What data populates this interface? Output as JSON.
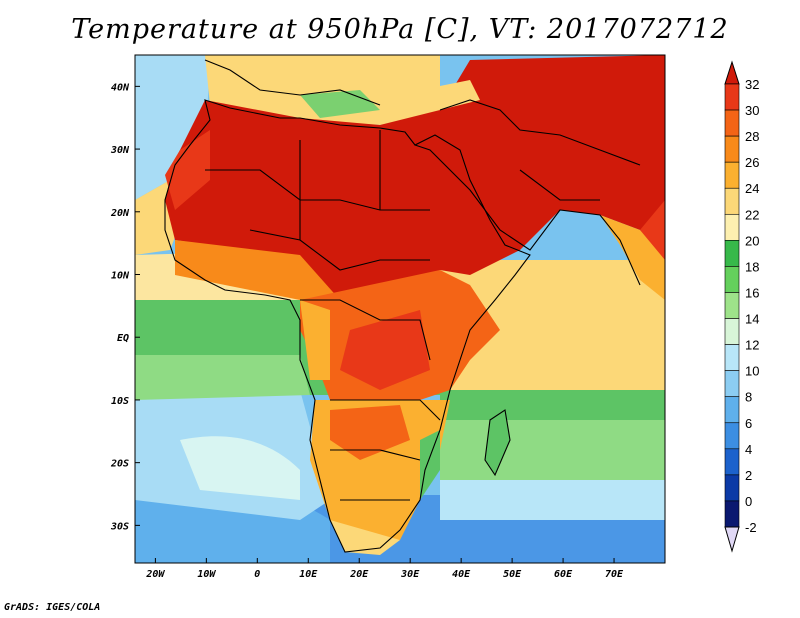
{
  "title": "Temperature at 950hPa [C], VT: 2017072712",
  "credit": "GrADS: IGES/COLA",
  "map": {
    "projection": "latlon",
    "lon_range": [
      -24,
      80
    ],
    "lat_range": [
      -36,
      45
    ],
    "lat_ticks": [
      "40N",
      "30N",
      "20N",
      "10N",
      "EQ",
      "10S",
      "20S",
      "30S"
    ],
    "lon_ticks": [
      "20W",
      "10W",
      "0",
      "10E",
      "20E",
      "30E",
      "40E",
      "50E",
      "60E",
      "70E"
    ],
    "colorbar": {
      "labels": [
        "32",
        "30",
        "28",
        "26",
        "24",
        "22",
        "20",
        "18",
        "16",
        "14",
        "12",
        "10",
        "8",
        "6",
        "4",
        "2",
        "0",
        "-2"
      ],
      "colors": [
        "#d01a0a",
        "#e83818",
        "#f46416",
        "#f88a1a",
        "#fbb030",
        "#fcd878",
        "#fdf0b0",
        "#37b94a",
        "#64d05c",
        "#9ee38a",
        "#d8f5d8",
        "#b8e6f8",
        "#8ccdf2",
        "#5fb0ec",
        "#3c8ee2",
        "#1c62cc",
        "#0b3aa6",
        "#0a1870",
        "#e0d8f5"
      ]
    }
  }
}
